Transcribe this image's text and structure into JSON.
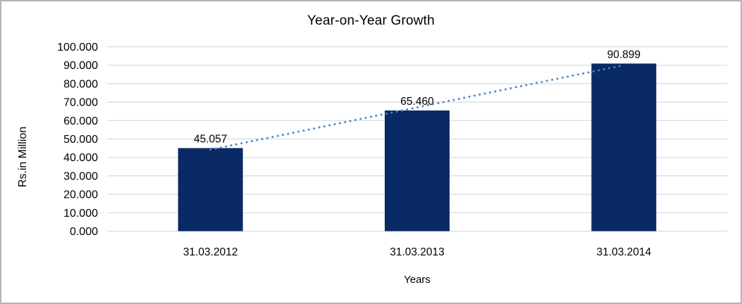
{
  "chart_data": {
    "type": "bar",
    "title": "Year-on-Year Growth",
    "categories": [
      "31.03.2012",
      "31.03.2013",
      "31.03.2014"
    ],
    "values": [
      45.057,
      65.46,
      90.899
    ],
    "data_labels": [
      "45.057",
      "65.460",
      "90.899"
    ],
    "xlabel": "Years",
    "ylabel": "Rs.in Million",
    "ylim": [
      0,
      100
    ],
    "ytick_step": 10,
    "ytick_labels": [
      "0.000",
      "10.000",
      "20.000",
      "30.000",
      "40.000",
      "50.000",
      "60.000",
      "70.000",
      "80.000",
      "90.000",
      "100.000"
    ],
    "grid": true,
    "legend": "none",
    "trendline": {
      "type": "linear",
      "style": "dotted",
      "color": "#4a86c8"
    },
    "colors": {
      "bar": "#0a2a66",
      "gridline": "#d9d9d9",
      "text": "#000000",
      "frame_border": "#b3b3b3",
      "background": "#ffffff"
    }
  }
}
